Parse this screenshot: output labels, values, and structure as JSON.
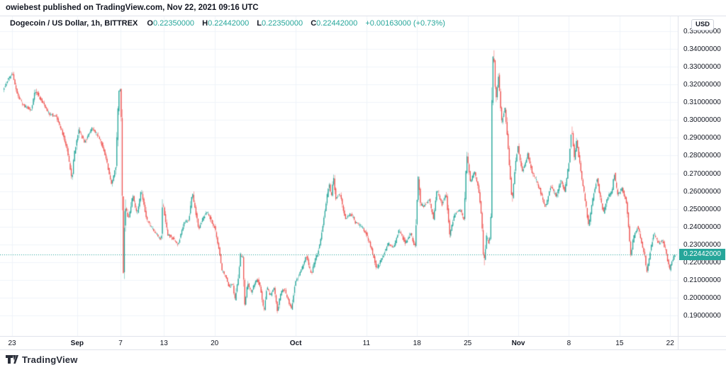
{
  "attribution": "owiebest published on TradingView.com, Nov 22, 2021 09:16 UTC",
  "header": {
    "symbol_title": "Dogecoin / US Dollar, 1h, BITTREX",
    "ohlc": [
      {
        "label": "O",
        "value": "0.22350000"
      },
      {
        "label": "H",
        "value": "0.22442000"
      },
      {
        "label": "L",
        "value": "0.22350000"
      },
      {
        "label": "C",
        "value": "0.22442000"
      }
    ],
    "change": "+0.00163000 (+0.73%)"
  },
  "price_axis": {
    "unit_badge": "USD",
    "last_price_label": "0.22442000"
  },
  "footer": {
    "brand": "TradingView",
    "logo_icon": "tradingview-mark"
  },
  "colors": {
    "up": "#26a69a",
    "down": "#ef5350",
    "grid": "#f0f3fa",
    "border": "#e0e3eb",
    "text": "#131722",
    "badge_bg": "#26a69a",
    "badge_text": "#ffffff"
  },
  "chart_data": {
    "type": "candlestick",
    "title": "Dogecoin / US Dollar",
    "exchange": "BITTREX",
    "interval": "1h",
    "grid": true,
    "last_price": 0.22442,
    "current_bar": {
      "open": 0.2235,
      "high": 0.22442,
      "low": 0.2235,
      "close": 0.22442,
      "change": 0.00163,
      "change_pct": 0.73
    },
    "y_axis": {
      "levels": [
        0.35,
        0.34,
        0.33,
        0.32,
        0.31,
        0.3,
        0.29,
        0.28,
        0.27,
        0.26,
        0.25,
        0.24,
        0.23,
        0.22,
        0.21,
        0.2,
        0.19
      ],
      "labels": [
        "0.35000000",
        "0.34000000",
        "0.33000000",
        "0.32000000",
        "0.31000000",
        "0.30000000",
        "0.29000000",
        "0.28000000",
        "0.27000000",
        "0.26000000",
        "0.25000000",
        "0.24000000",
        "0.23000000",
        "0.22000000",
        "0.21000000",
        "0.20000000",
        "0.19000000"
      ],
      "visible_range": [
        0.176,
        0.352
      ]
    },
    "x_axis": {
      "start_date": "2021-08-22",
      "end_date": "2021-11-22",
      "ticks": [
        {
          "label": "23",
          "t": 1.18,
          "bold": false
        },
        {
          "label": "Sep",
          "t": 10.18,
          "bold": true
        },
        {
          "label": "7",
          "t": 16.18,
          "bold": false
        },
        {
          "label": "13",
          "t": 22.18,
          "bold": false
        },
        {
          "label": "20",
          "t": 29.18,
          "bold": false
        },
        {
          "label": "Oct",
          "t": 40.4,
          "bold": true
        },
        {
          "label": "11",
          "t": 50.18,
          "bold": false
        },
        {
          "label": "18",
          "t": 57.18,
          "bold": false
        },
        {
          "label": "25",
          "t": 64.18,
          "bold": false
        },
        {
          "label": "Nov",
          "t": 71.18,
          "bold": true
        },
        {
          "label": "8",
          "t": 78.18,
          "bold": false
        },
        {
          "label": "15",
          "t": 85.18,
          "bold": false
        },
        {
          "label": "22",
          "t": 92.18,
          "bold": false
        }
      ]
    },
    "keypoints_note": "piecewise-linear price path read from chart; t = days since first visible bar (2021-08-22)",
    "keypoints": [
      [
        0.0,
        0.317
      ],
      [
        0.69,
        0.3225
      ],
      [
        1.27,
        0.3268
      ],
      [
        1.96,
        0.315
      ],
      [
        2.75,
        0.3085
      ],
      [
        3.92,
        0.3055
      ],
      [
        4.41,
        0.317
      ],
      [
        5.39,
        0.3105
      ],
      [
        6.37,
        0.3035
      ],
      [
        7.35,
        0.302
      ],
      [
        8.14,
        0.294
      ],
      [
        8.82,
        0.284
      ],
      [
        9.31,
        0.2725
      ],
      [
        9.51,
        0.266
      ],
      [
        9.8,
        0.28
      ],
      [
        10.49,
        0.2945
      ],
      [
        11.27,
        0.2875
      ],
      [
        12.35,
        0.2958
      ],
      [
        13.24,
        0.2905
      ],
      [
        14.02,
        0.2825
      ],
      [
        15.0,
        0.2638
      ],
      [
        15.59,
        0.2735
      ],
      [
        15.98,
        0.3155
      ],
      [
        16.18,
        0.3185
      ],
      [
        16.37,
        0.298
      ],
      [
        16.62,
        0.2115
      ],
      [
        16.86,
        0.252
      ],
      [
        17.35,
        0.2445
      ],
      [
        17.94,
        0.2575
      ],
      [
        18.53,
        0.247
      ],
      [
        19.12,
        0.2605
      ],
      [
        19.9,
        0.2435
      ],
      [
        21.08,
        0.2365
      ],
      [
        21.86,
        0.2325
      ],
      [
        22.06,
        0.2543
      ],
      [
        22.75,
        0.236
      ],
      [
        23.53,
        0.233
      ],
      [
        24.22,
        0.23
      ],
      [
        25.0,
        0.242
      ],
      [
        25.69,
        0.244
      ],
      [
        26.18,
        0.2588
      ],
      [
        26.57,
        0.25
      ],
      [
        27.06,
        0.239
      ],
      [
        27.65,
        0.245
      ],
      [
        28.24,
        0.2483
      ],
      [
        28.82,
        0.243
      ],
      [
        29.31,
        0.239
      ],
      [
        29.8,
        0.229
      ],
      [
        30.29,
        0.215
      ],
      [
        30.78,
        0.212
      ],
      [
        31.27,
        0.206
      ],
      [
        31.76,
        0.208
      ],
      [
        32.06,
        0.1985
      ],
      [
        32.55,
        0.212
      ],
      [
        32.84,
        0.2245
      ],
      [
        33.14,
        0.2224
      ],
      [
        33.43,
        0.1957
      ],
      [
        33.82,
        0.2085
      ],
      [
        34.31,
        0.203
      ],
      [
        35.1,
        0.211
      ],
      [
        35.59,
        0.206
      ],
      [
        36.08,
        0.1918
      ],
      [
        36.47,
        0.206
      ],
      [
        36.96,
        0.2015
      ],
      [
        37.45,
        0.206
      ],
      [
        37.94,
        0.193
      ],
      [
        38.43,
        0.203
      ],
      [
        38.92,
        0.2049
      ],
      [
        39.41,
        0.199
      ],
      [
        39.9,
        0.1937
      ],
      [
        40.39,
        0.209
      ],
      [
        40.88,
        0.2125
      ],
      [
        41.37,
        0.2168
      ],
      [
        41.96,
        0.2236
      ],
      [
        42.35,
        0.217
      ],
      [
        42.65,
        0.2136
      ],
      [
        43.04,
        0.22
      ],
      [
        43.43,
        0.2245
      ],
      [
        43.82,
        0.2305
      ],
      [
        44.12,
        0.2385
      ],
      [
        44.61,
        0.252
      ],
      [
        45.1,
        0.2648
      ],
      [
        45.39,
        0.256
      ],
      [
        45.69,
        0.269
      ],
      [
        45.98,
        0.256
      ],
      [
        46.57,
        0.2585
      ],
      [
        47.35,
        0.2445
      ],
      [
        48.04,
        0.2475
      ],
      [
        48.73,
        0.2425
      ],
      [
        49.51,
        0.2405
      ],
      [
        50.29,
        0.2355
      ],
      [
        51.08,
        0.2255
      ],
      [
        51.67,
        0.2165
      ],
      [
        52.45,
        0.2225
      ],
      [
        53.24,
        0.2305
      ],
      [
        54.02,
        0.2285
      ],
      [
        54.8,
        0.2385
      ],
      [
        55.59,
        0.2305
      ],
      [
        56.37,
        0.2365
      ],
      [
        56.96,
        0.2285
      ],
      [
        57.45,
        0.2705
      ],
      [
        57.65,
        0.253
      ],
      [
        58.14,
        0.2515
      ],
      [
        58.92,
        0.2555
      ],
      [
        59.51,
        0.2445
      ],
      [
        60.0,
        0.2605
      ],
      [
        60.69,
        0.2525
      ],
      [
        61.27,
        0.2595
      ],
      [
        61.76,
        0.2355
      ],
      [
        62.45,
        0.2475
      ],
      [
        63.24,
        0.2495
      ],
      [
        63.73,
        0.2435
      ],
      [
        64.12,
        0.2815
      ],
      [
        64.61,
        0.2655
      ],
      [
        65.2,
        0.2705
      ],
      [
        65.78,
        0.2605
      ],
      [
        66.18,
        0.2455
      ],
      [
        66.47,
        0.2185
      ],
      [
        66.86,
        0.2345
      ],
      [
        67.25,
        0.2305
      ],
      [
        67.45,
        0.242
      ],
      [
        67.65,
        0.3295
      ],
      [
        67.84,
        0.3394
      ],
      [
        68.14,
        0.3105
      ],
      [
        68.53,
        0.3255
      ],
      [
        68.92,
        0.2985
      ],
      [
        69.41,
        0.3065
      ],
      [
        69.8,
        0.2865
      ],
      [
        70.39,
        0.2535
      ],
      [
        70.78,
        0.2725
      ],
      [
        71.18,
        0.2854
      ],
      [
        71.76,
        0.2705
      ],
      [
        72.55,
        0.2805
      ],
      [
        73.24,
        0.2695
      ],
      [
        73.82,
        0.2655
      ],
      [
        74.41,
        0.2585
      ],
      [
        75.0,
        0.2508
      ],
      [
        75.78,
        0.2635
      ],
      [
        76.47,
        0.2565
      ],
      [
        77.16,
        0.2665
      ],
      [
        77.65,
        0.2595
      ],
      [
        78.24,
        0.2755
      ],
      [
        78.63,
        0.2961
      ],
      [
        79.02,
        0.2775
      ],
      [
        79.31,
        0.2885
      ],
      [
        79.9,
        0.2705
      ],
      [
        80.49,
        0.2555
      ],
      [
        80.98,
        0.2402
      ],
      [
        81.67,
        0.2585
      ],
      [
        82.16,
        0.2675
      ],
      [
        82.65,
        0.2545
      ],
      [
        83.04,
        0.2482
      ],
      [
        83.63,
        0.2565
      ],
      [
        84.22,
        0.2605
      ],
      [
        84.51,
        0.2705
      ],
      [
        85.0,
        0.2575
      ],
      [
        85.59,
        0.2615
      ],
      [
        86.18,
        0.2545
      ],
      [
        86.57,
        0.2375
      ],
      [
        86.76,
        0.2232
      ],
      [
        87.16,
        0.2335
      ],
      [
        87.75,
        0.2402
      ],
      [
        88.24,
        0.2325
      ],
      [
        88.73,
        0.2235
      ],
      [
        89.02,
        0.2141
      ],
      [
        89.51,
        0.2265
      ],
      [
        90.0,
        0.2362
      ],
      [
        90.59,
        0.2305
      ],
      [
        91.18,
        0.2325
      ],
      [
        91.67,
        0.2265
      ],
      [
        92.16,
        0.2153
      ],
      [
        92.55,
        0.2215
      ],
      [
        92.94,
        0.2244
      ]
    ]
  }
}
